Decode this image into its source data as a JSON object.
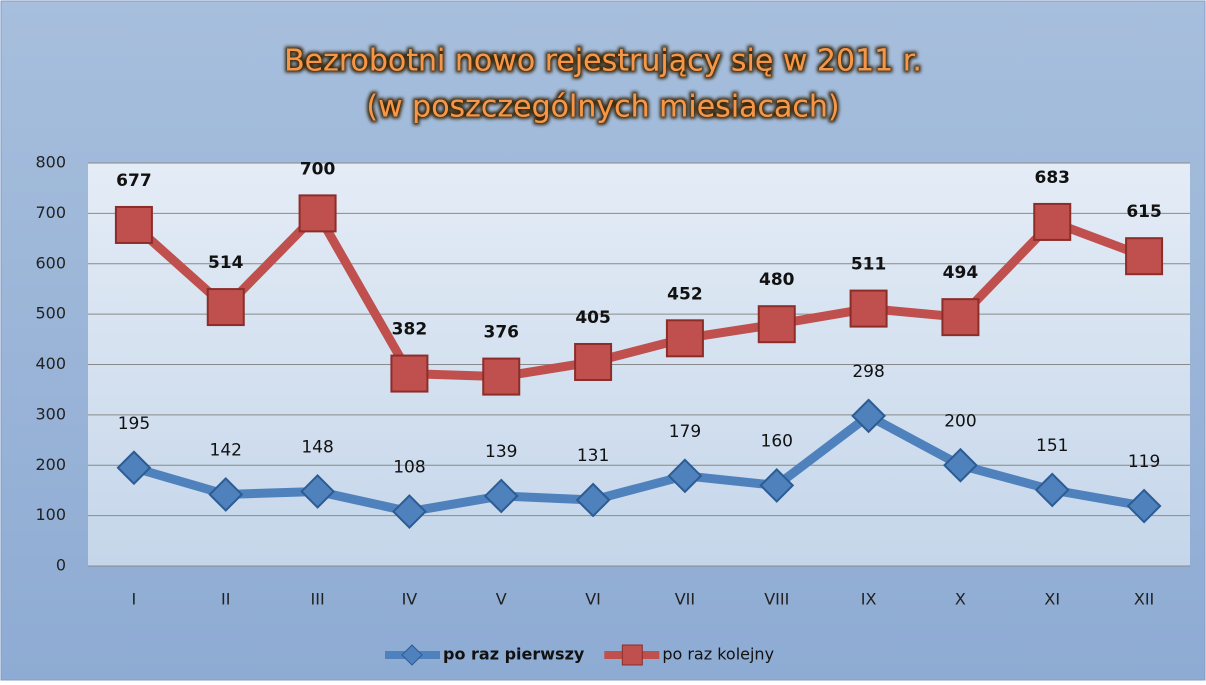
{
  "chart_data": {
    "type": "line",
    "title": "Bezrobotni nowo rejestrujący się w 2011 r.",
    "subtitle": "(w poszczególnych miesiacach)",
    "categories": [
      "I",
      "II",
      "III",
      "IV",
      "V",
      "VI",
      "VII",
      "VIII",
      "IX",
      "X",
      "XI",
      "XII"
    ],
    "series": [
      {
        "name": "po raz pierwszy",
        "color": "#4f81bd",
        "marker": "diamond",
        "values": [
          195,
          142,
          148,
          108,
          139,
          131,
          179,
          160,
          298,
          200,
          151,
          119
        ]
      },
      {
        "name": "po raz kolejny",
        "color": "#c0504d",
        "marker": "square",
        "values": [
          677,
          514,
          700,
          382,
          376,
          405,
          452,
          480,
          511,
          494,
          683,
          615
        ]
      }
    ],
    "ylim": [
      0,
      800
    ],
    "yticks": [
      0,
      100,
      200,
      300,
      400,
      500,
      600,
      700,
      800
    ],
    "grid": true,
    "legend": "bottom"
  }
}
